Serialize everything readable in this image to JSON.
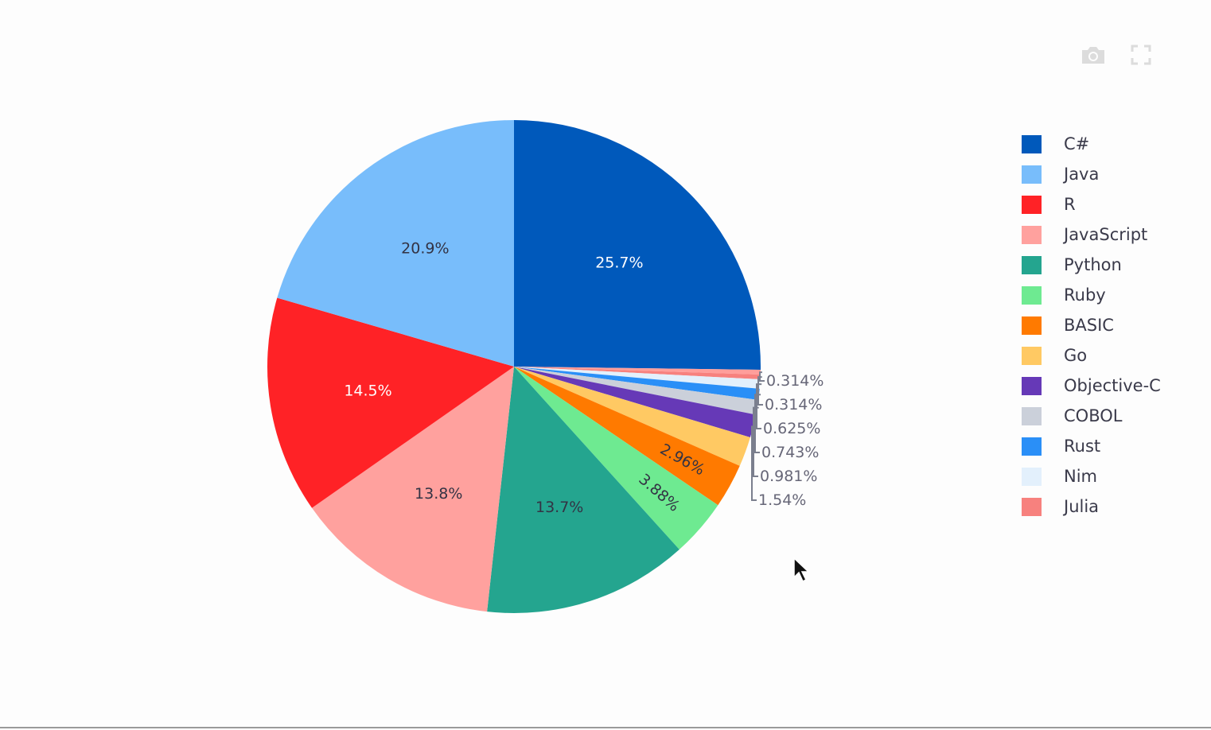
{
  "modebar": {
    "camera_icon": "camera-icon",
    "fullscreen_icon": "fullscreen-icon"
  },
  "chart_data": {
    "type": "pie",
    "title": "",
    "legend_position": "right",
    "slices": [
      {
        "label": "C#",
        "percent": 25.7,
        "text": "25.7%",
        "color": "#0059bb",
        "text_color": "#ffffff"
      },
      {
        "label": "JavaScript",
        "percent": 0.314,
        "text": "0.314%",
        "color": "#ff9e9b",
        "text_color": "#666677"
      },
      {
        "label": "Julia",
        "percent": 0.314,
        "text": "0.314%",
        "color": "#f7817e",
        "text_color": "#666677"
      },
      {
        "label": "Nim",
        "percent": 0.625,
        "text": "0.625%",
        "color": "#e3f0fc",
        "text_color": "#666677"
      },
      {
        "label": "Rust",
        "percent": 0.743,
        "text": "0.743%",
        "color": "#2a8ff7",
        "text_color": "#666677"
      },
      {
        "label": "COBOL",
        "percent": 0.981,
        "text": "0.981%",
        "color": "#cbd0da",
        "text_color": "#666677"
      },
      {
        "label": "Objective-C",
        "percent": 1.54,
        "text": "1.54%",
        "color": "#6639b7",
        "text_color": "#666677"
      },
      {
        "label": "Go",
        "percent": 2.0,
        "text": "",
        "color": "#ffc963",
        "text_color": "#666677"
      },
      {
        "label": "BASIC",
        "percent": 2.96,
        "text": "2.96%",
        "color": "#ff7a00",
        "text_color": "#333344"
      },
      {
        "label": "Ruby",
        "percent": 3.88,
        "text": "3.88%",
        "color": "#6eea91",
        "text_color": "#333344"
      },
      {
        "label": "Python",
        "percent": 13.7,
        "text": "13.7%",
        "color": "#24a58f",
        "text_color": "#333344"
      },
      {
        "label": "JavaScript",
        "percent": 13.8,
        "text": "13.8%",
        "color": "#ffa19e",
        "text_color": "#333344"
      },
      {
        "label": "R",
        "percent": 14.5,
        "text": "14.5%",
        "color": "#ff2226",
        "text_color": "#ffffff"
      },
      {
        "label": "Java",
        "percent": 20.9,
        "text": "20.9%",
        "color": "#78bdfb",
        "text_color": "#333344"
      }
    ],
    "legend": [
      {
        "label": "C#",
        "color": "#0059bb"
      },
      {
        "label": "Java",
        "color": "#78bdfb"
      },
      {
        "label": "R",
        "color": "#ff2226"
      },
      {
        "label": "JavaScript",
        "color": "#ffa19e"
      },
      {
        "label": "Python",
        "color": "#24a58f"
      },
      {
        "label": "Ruby",
        "color": "#6eea91"
      },
      {
        "label": "BASIC",
        "color": "#ff7a00"
      },
      {
        "label": "Go",
        "color": "#ffc963"
      },
      {
        "label": "Objective-C",
        "color": "#6639b7"
      },
      {
        "label": "COBOL",
        "color": "#cbd0da"
      },
      {
        "label": "Rust",
        "color": "#2a8ff7"
      },
      {
        "label": "Nim",
        "color": "#e3f0fc"
      },
      {
        "label": "Julia",
        "color": "#f7817e"
      }
    ]
  }
}
